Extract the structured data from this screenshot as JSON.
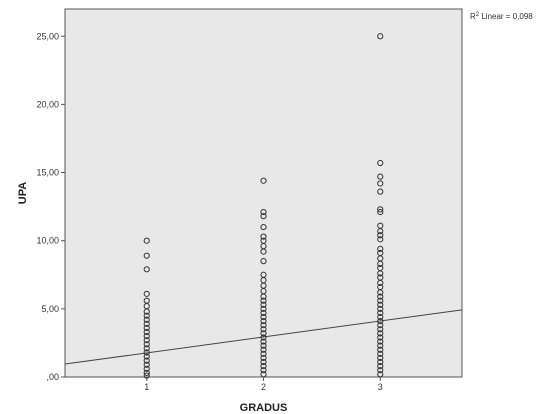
{
  "chart_data": {
    "type": "scatter",
    "xlabel": "GRADUS",
    "ylabel": "UPA",
    "x_ticks": [
      "1",
      "2",
      "3"
    ],
    "y_ticks": [
      ",00",
      "5,00",
      "10,00",
      "15,00",
      "20,00",
      "25,00"
    ],
    "xlim": [
      0.3,
      3.7
    ],
    "ylim": [
      0,
      27
    ],
    "grid": false,
    "plot_background": "#e8e8e8",
    "marker_color": "#333333",
    "fit_line_color": "#444444",
    "r2_label": {
      "prefix": "R",
      "sup": "2",
      "text": " Linear = 0,098"
    },
    "fit_line": {
      "slope": 1.17,
      "intercept": 0.6
    },
    "series": [
      {
        "points": [
          [
            1,
            10.0
          ],
          [
            1,
            8.9
          ],
          [
            1,
            7.9
          ],
          [
            1,
            6.1
          ],
          [
            1,
            5.6
          ],
          [
            1,
            5.2
          ],
          [
            1,
            4.8
          ],
          [
            1,
            4.5
          ],
          [
            1,
            4.2
          ],
          [
            1,
            3.9
          ],
          [
            1,
            3.6
          ],
          [
            1,
            3.3
          ],
          [
            1,
            3.0
          ],
          [
            1,
            2.7
          ],
          [
            1,
            2.4
          ],
          [
            1,
            2.1
          ],
          [
            1,
            1.8
          ],
          [
            1,
            1.5
          ],
          [
            1,
            1.2
          ],
          [
            1,
            0.9
          ],
          [
            1,
            0.6
          ],
          [
            1,
            0.3
          ],
          [
            1,
            0.1
          ],
          [
            2,
            14.4
          ],
          [
            2,
            12.1
          ],
          [
            2,
            11.8
          ],
          [
            2,
            11.0
          ],
          [
            2,
            10.3
          ],
          [
            2,
            10.0
          ],
          [
            2,
            9.6
          ],
          [
            2,
            9.2
          ],
          [
            2,
            8.5
          ],
          [
            2,
            7.5
          ],
          [
            2,
            7.1
          ],
          [
            2,
            6.7
          ],
          [
            2,
            6.3
          ],
          [
            2,
            5.9
          ],
          [
            2,
            5.6
          ],
          [
            2,
            5.3
          ],
          [
            2,
            5.0
          ],
          [
            2,
            4.7
          ],
          [
            2,
            4.4
          ],
          [
            2,
            4.1
          ],
          [
            2,
            3.8
          ],
          [
            2,
            3.5
          ],
          [
            2,
            3.2
          ],
          [
            2,
            2.9
          ],
          [
            2,
            2.6
          ],
          [
            2,
            2.3
          ],
          [
            2,
            2.0
          ],
          [
            2,
            1.7
          ],
          [
            2,
            1.4
          ],
          [
            2,
            1.1
          ],
          [
            2,
            0.8
          ],
          [
            2,
            0.5
          ],
          [
            2,
            0.2
          ],
          [
            3,
            25.0
          ],
          [
            3,
            15.7
          ],
          [
            3,
            14.7
          ],
          [
            3,
            14.2
          ],
          [
            3,
            13.6
          ],
          [
            3,
            12.3
          ],
          [
            3,
            12.1
          ],
          [
            3,
            11.1
          ],
          [
            3,
            10.7
          ],
          [
            3,
            10.4
          ],
          [
            3,
            10.1
          ],
          [
            3,
            9.4
          ],
          [
            3,
            9.1
          ],
          [
            3,
            8.7
          ],
          [
            3,
            8.3
          ],
          [
            3,
            8.0
          ],
          [
            3,
            7.6
          ],
          [
            3,
            7.3
          ],
          [
            3,
            6.9
          ],
          [
            3,
            6.6
          ],
          [
            3,
            6.2
          ],
          [
            3,
            5.9
          ],
          [
            3,
            5.6
          ],
          [
            3,
            5.3
          ],
          [
            3,
            5.0
          ],
          [
            3,
            4.7
          ],
          [
            3,
            4.4
          ],
          [
            3,
            4.1
          ],
          [
            3,
            3.8
          ],
          [
            3,
            3.5
          ],
          [
            3,
            3.2
          ],
          [
            3,
            2.9
          ],
          [
            3,
            2.6
          ],
          [
            3,
            2.3
          ],
          [
            3,
            2.0
          ],
          [
            3,
            1.7
          ],
          [
            3,
            1.4
          ],
          [
            3,
            1.1
          ],
          [
            3,
            0.8
          ],
          [
            3,
            0.5
          ],
          [
            3,
            0.2
          ]
        ]
      }
    ]
  }
}
